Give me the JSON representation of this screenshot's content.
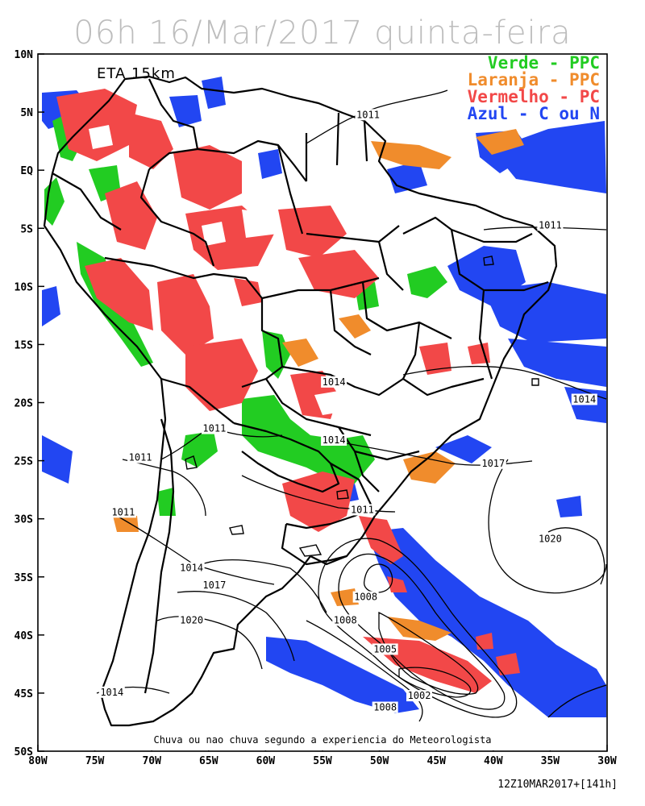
{
  "title": "06h 16/Mar/2017 quinta-feira",
  "model_label": "ETA 15km",
  "legend": [
    {
      "text": "Verde - PPC",
      "color": "#22cc22"
    },
    {
      "text": "Laranja - PPC",
      "color": "#f08c2c"
    },
    {
      "text": "Vermelho - PC",
      "color": "#f24848"
    },
    {
      "text": "Azul - C ou N",
      "color": "#2246f2"
    }
  ],
  "caption": "Chuva ou nao chuva segundo a experiencia do Meteorologista",
  "run_info": "12Z10MAR2017+[141h]",
  "lat_ticks": [
    "10N",
    "5N",
    "EQ",
    "5S",
    "10S",
    "15S",
    "20S",
    "25S",
    "30S",
    "35S",
    "40S",
    "45S",
    "50S"
  ],
  "lon_ticks": [
    "80W",
    "75W",
    "70W",
    "65W",
    "60W",
    "55W",
    "50W",
    "45W",
    "40W",
    "35W",
    "30W"
  ],
  "isobar_labels": [
    {
      "text": "1011",
      "lon": -51.0,
      "lat": 4.5
    },
    {
      "text": "1011",
      "lon": -35.0,
      "lat": -5.0
    },
    {
      "text": "1014",
      "lon": -54.0,
      "lat": -18.5
    },
    {
      "text": "1014",
      "lon": -32.0,
      "lat": -20.0
    },
    {
      "text": "1014",
      "lon": -54.0,
      "lat": -23.5
    },
    {
      "text": "1011",
      "lon": -64.5,
      "lat": -22.5
    },
    {
      "text": "1011",
      "lon": -71.0,
      "lat": -25.0
    },
    {
      "text": "1017",
      "lon": -40.0,
      "lat": -25.5
    },
    {
      "text": "1011",
      "lon": -72.5,
      "lat": -29.7
    },
    {
      "text": "1011",
      "lon": -51.5,
      "lat": -29.5
    },
    {
      "text": "1020",
      "lon": -35.0,
      "lat": -32.0
    },
    {
      "text": "1014",
      "lon": -66.5,
      "lat": -34.5
    },
    {
      "text": "1017",
      "lon": -64.5,
      "lat": -36.0
    },
    {
      "text": "1008",
      "lon": -51.2,
      "lat": -37.0
    },
    {
      "text": "1020",
      "lon": -66.5,
      "lat": -39.0
    },
    {
      "text": "1008",
      "lon": -53.0,
      "lat": -39.0
    },
    {
      "text": "1005",
      "lon": -49.5,
      "lat": -41.5
    },
    {
      "text": "1002",
      "lon": -46.5,
      "lat": -45.5
    },
    {
      "text": "1008",
      "lon": -49.5,
      "lat": -46.5
    },
    {
      "text": "1014",
      "lon": -73.5,
      "lat": -45.2
    }
  ]
}
